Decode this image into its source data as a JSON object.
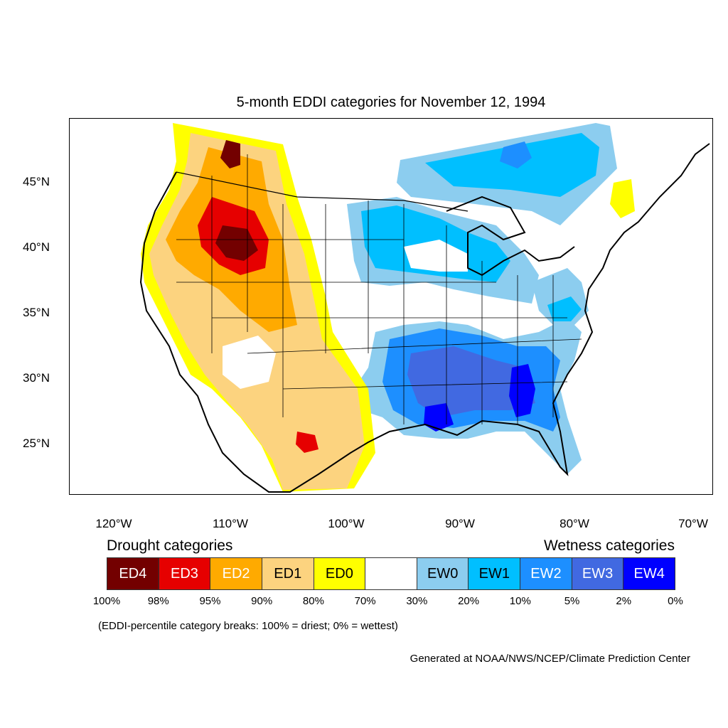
{
  "title": "5-month EDDI categories for November 12, 1994",
  "map": {
    "lon_range": [
      -124.4,
      -68.6
    ],
    "lat_range": [
      21.0,
      49.8
    ],
    "y_ticks": [
      "45°N",
      "40°N",
      "35°N",
      "30°N",
      "25°N"
    ],
    "x_ticks": [
      "120°W",
      "110°W",
      "100°W",
      "90°W",
      "80°W",
      "70°W"
    ],
    "colors": {
      "ED4": "#730000",
      "ED3": "#e60000",
      "ED2": "#ffaa00",
      "ED1": "#fcd37f",
      "ED0": "#ffff00",
      "EW0": "#8ccdef",
      "EW1": "#00bfff",
      "EW2": "#1d8fff",
      "EW3": "#4169e1",
      "EW4": "#0000ff"
    },
    "regions_summary": [
      {
        "area": "Western US (Rockies, Great Basin, Southwest, Texas)",
        "category": "Drought (ED0–ED4)"
      },
      {
        "area": "Southeast US / Gulf Coast",
        "category": "Wetness (EW0–EW4)"
      },
      {
        "area": "Upper Midwest / Great Lakes / Southern Canada",
        "category": "Wetness (EW0–EW2)"
      }
    ]
  },
  "legend": {
    "drought_title": "Drought categories",
    "wetness_title": "Wetness categories",
    "segments": [
      {
        "label": "ED4",
        "color": "#730000",
        "text_color": "#ffffff"
      },
      {
        "label": "ED3",
        "color": "#e60000",
        "text_color": "#ffffff"
      },
      {
        "label": "ED2",
        "color": "#ffaa00",
        "text_color": "#ffffff"
      },
      {
        "label": "ED1",
        "color": "#fcd37f",
        "text_color": "#000000"
      },
      {
        "label": "ED0",
        "color": "#ffff00",
        "text_color": "#000000"
      },
      {
        "label": "",
        "color": "#ffffff",
        "text_color": "#000000"
      },
      {
        "label": "EW0",
        "color": "#8ccdef",
        "text_color": "#000000"
      },
      {
        "label": "EW1",
        "color": "#00bfff",
        "text_color": "#000000"
      },
      {
        "label": "EW2",
        "color": "#1d8fff",
        "text_color": "#ffffff"
      },
      {
        "label": "EW3",
        "color": "#4169e1",
        "text_color": "#ffffff"
      },
      {
        "label": "EW4",
        "color": "#0000ff",
        "text_color": "#ffffff"
      }
    ],
    "percent_labels": [
      "100%",
      "98%",
      "95%",
      "90%",
      "80%",
      "70%",
      "30%",
      "20%",
      "10%",
      "5%",
      "2%",
      "0%"
    ]
  },
  "note": "(EDDI-percentile category breaks: 100% = driest; 0% = wettest)",
  "credit": "Generated at NOAA/NWS/NCEP/Climate Prediction Center"
}
